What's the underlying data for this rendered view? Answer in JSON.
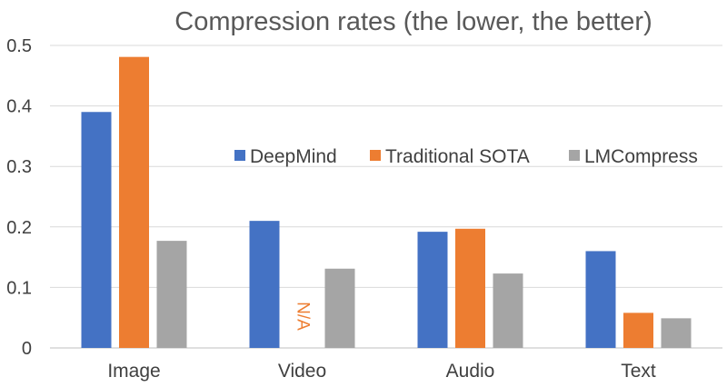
{
  "chart_data": {
    "type": "bar",
    "title": "Compression rates (the lower, the better)",
    "xlabel": "",
    "ylabel": "",
    "categories": [
      "Image",
      "Video",
      "Audio",
      "Text"
    ],
    "ylim": [
      0,
      0.5
    ],
    "yticks": [
      "0",
      "0.1",
      "0.2",
      "0.3",
      "0.4",
      "0.5"
    ],
    "grid": true,
    "legend_position": "center-right",
    "series": [
      {
        "name": "DeepMind",
        "color": "#4472C4",
        "values": [
          0.39,
          0.21,
          0.192,
          0.16
        ]
      },
      {
        "name": "Traditional SOTA",
        "color": "#ED7D31",
        "values": [
          0.481,
          null,
          0.197,
          0.058
        ]
      },
      {
        "name": "LMCompress",
        "color": "#A5A5A5",
        "values": [
          0.177,
          0.131,
          0.123,
          0.049
        ]
      }
    ],
    "annotations": [
      {
        "text": "N/A",
        "category": "Video",
        "series": "Traditional SOTA",
        "color": "#ED7D31"
      }
    ]
  }
}
